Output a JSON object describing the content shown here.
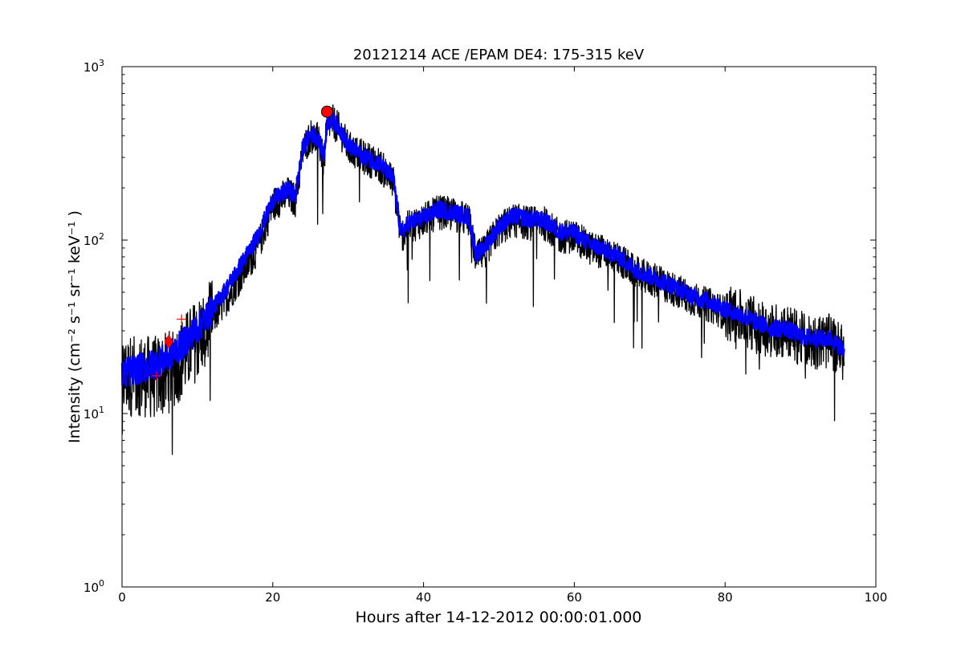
{
  "chart_data": {
    "type": "line",
    "title": "20121214 ACE /EPAM DE4: 175-315 keV",
    "xlabel": "Hours after 14-12-2012 00:00:01.000",
    "ylabel": "Intensity (cm⁻² s⁻¹ sr⁻¹ keV⁻¹ )",
    "xlim": [
      0,
      100
    ],
    "ylim": [
      1,
      1000
    ],
    "yscale": "log",
    "grid": false,
    "x_ticks": [
      "0",
      "20",
      "40",
      "60",
      "80",
      "100"
    ],
    "y_ticks": [
      {
        "base": "10",
        "exp": "0"
      },
      {
        "base": "10",
        "exp": "1"
      },
      {
        "base": "10",
        "exp": "2"
      },
      {
        "base": "10",
        "exp": "3"
      }
    ],
    "series": [
      {
        "color": "#000000",
        "style": "raw-noisy",
        "x": [
          0,
          2,
          4,
          6,
          8,
          10,
          12,
          14,
          16,
          18,
          20,
          22,
          23,
          24,
          25,
          26,
          26.8,
          27.2,
          28,
          29,
          30,
          32,
          34,
          36,
          37,
          38,
          40,
          42,
          44,
          46,
          47,
          48,
          50,
          52,
          54,
          56,
          58,
          60,
          62,
          64,
          66,
          68,
          70,
          72,
          74,
          76,
          78,
          80,
          82,
          84,
          86,
          88,
          90,
          92,
          94,
          95.8
        ],
        "y": [
          16,
          17,
          16,
          17,
          21,
          27,
          35,
          47,
          65,
          90,
          160,
          185,
          170,
          330,
          400,
          380,
          280,
          470,
          480,
          420,
          340,
          300,
          275,
          215,
          105,
          120,
          130,
          145,
          140,
          130,
          78,
          85,
          115,
          130,
          125,
          125,
          105,
          105,
          90,
          85,
          78,
          65,
          60,
          55,
          50,
          45,
          42,
          38,
          36,
          33,
          30,
          30,
          27,
          26,
          26,
          22
        ]
      },
      {
        "color": "#0000ff",
        "style": "smoothed-band",
        "x": [
          0,
          2,
          4,
          6,
          8,
          10,
          12,
          14,
          16,
          18,
          20,
          22,
          23,
          24,
          25,
          26,
          26.8,
          27.2,
          28,
          29,
          30,
          32,
          34,
          36,
          37,
          38,
          40,
          42,
          44,
          46,
          47,
          48,
          50,
          52,
          54,
          56,
          58,
          60,
          62,
          64,
          66,
          68,
          70,
          72,
          74,
          76,
          78,
          80,
          82,
          84,
          86,
          88,
          90,
          92,
          94,
          95.8
        ],
        "y": [
          17,
          18,
          19,
          21,
          25,
          31,
          40,
          54,
          75,
          105,
          170,
          195,
          180,
          340,
          410,
          390,
          300,
          480,
          490,
          430,
          350,
          305,
          280,
          225,
          110,
          125,
          135,
          150,
          145,
          135,
          82,
          90,
          120,
          138,
          132,
          130,
          112,
          110,
          95,
          88,
          80,
          68,
          62,
          57,
          52,
          47,
          44,
          40,
          37,
          34,
          31,
          31,
          28,
          27,
          27,
          23
        ]
      }
    ],
    "markers": [
      {
        "shape": "circle",
        "color": "#ff0000",
        "x": 27.2,
        "y": 550
      },
      {
        "shape": "diamond",
        "color": "#ff0000",
        "x": 6.2,
        "y": 26
      },
      {
        "shape": "plus",
        "color": "#ff0000",
        "x": 4.6,
        "y": 16.5
      },
      {
        "shape": "plus",
        "color": "#ff0000",
        "x": 7.9,
        "y": 35
      }
    ]
  }
}
